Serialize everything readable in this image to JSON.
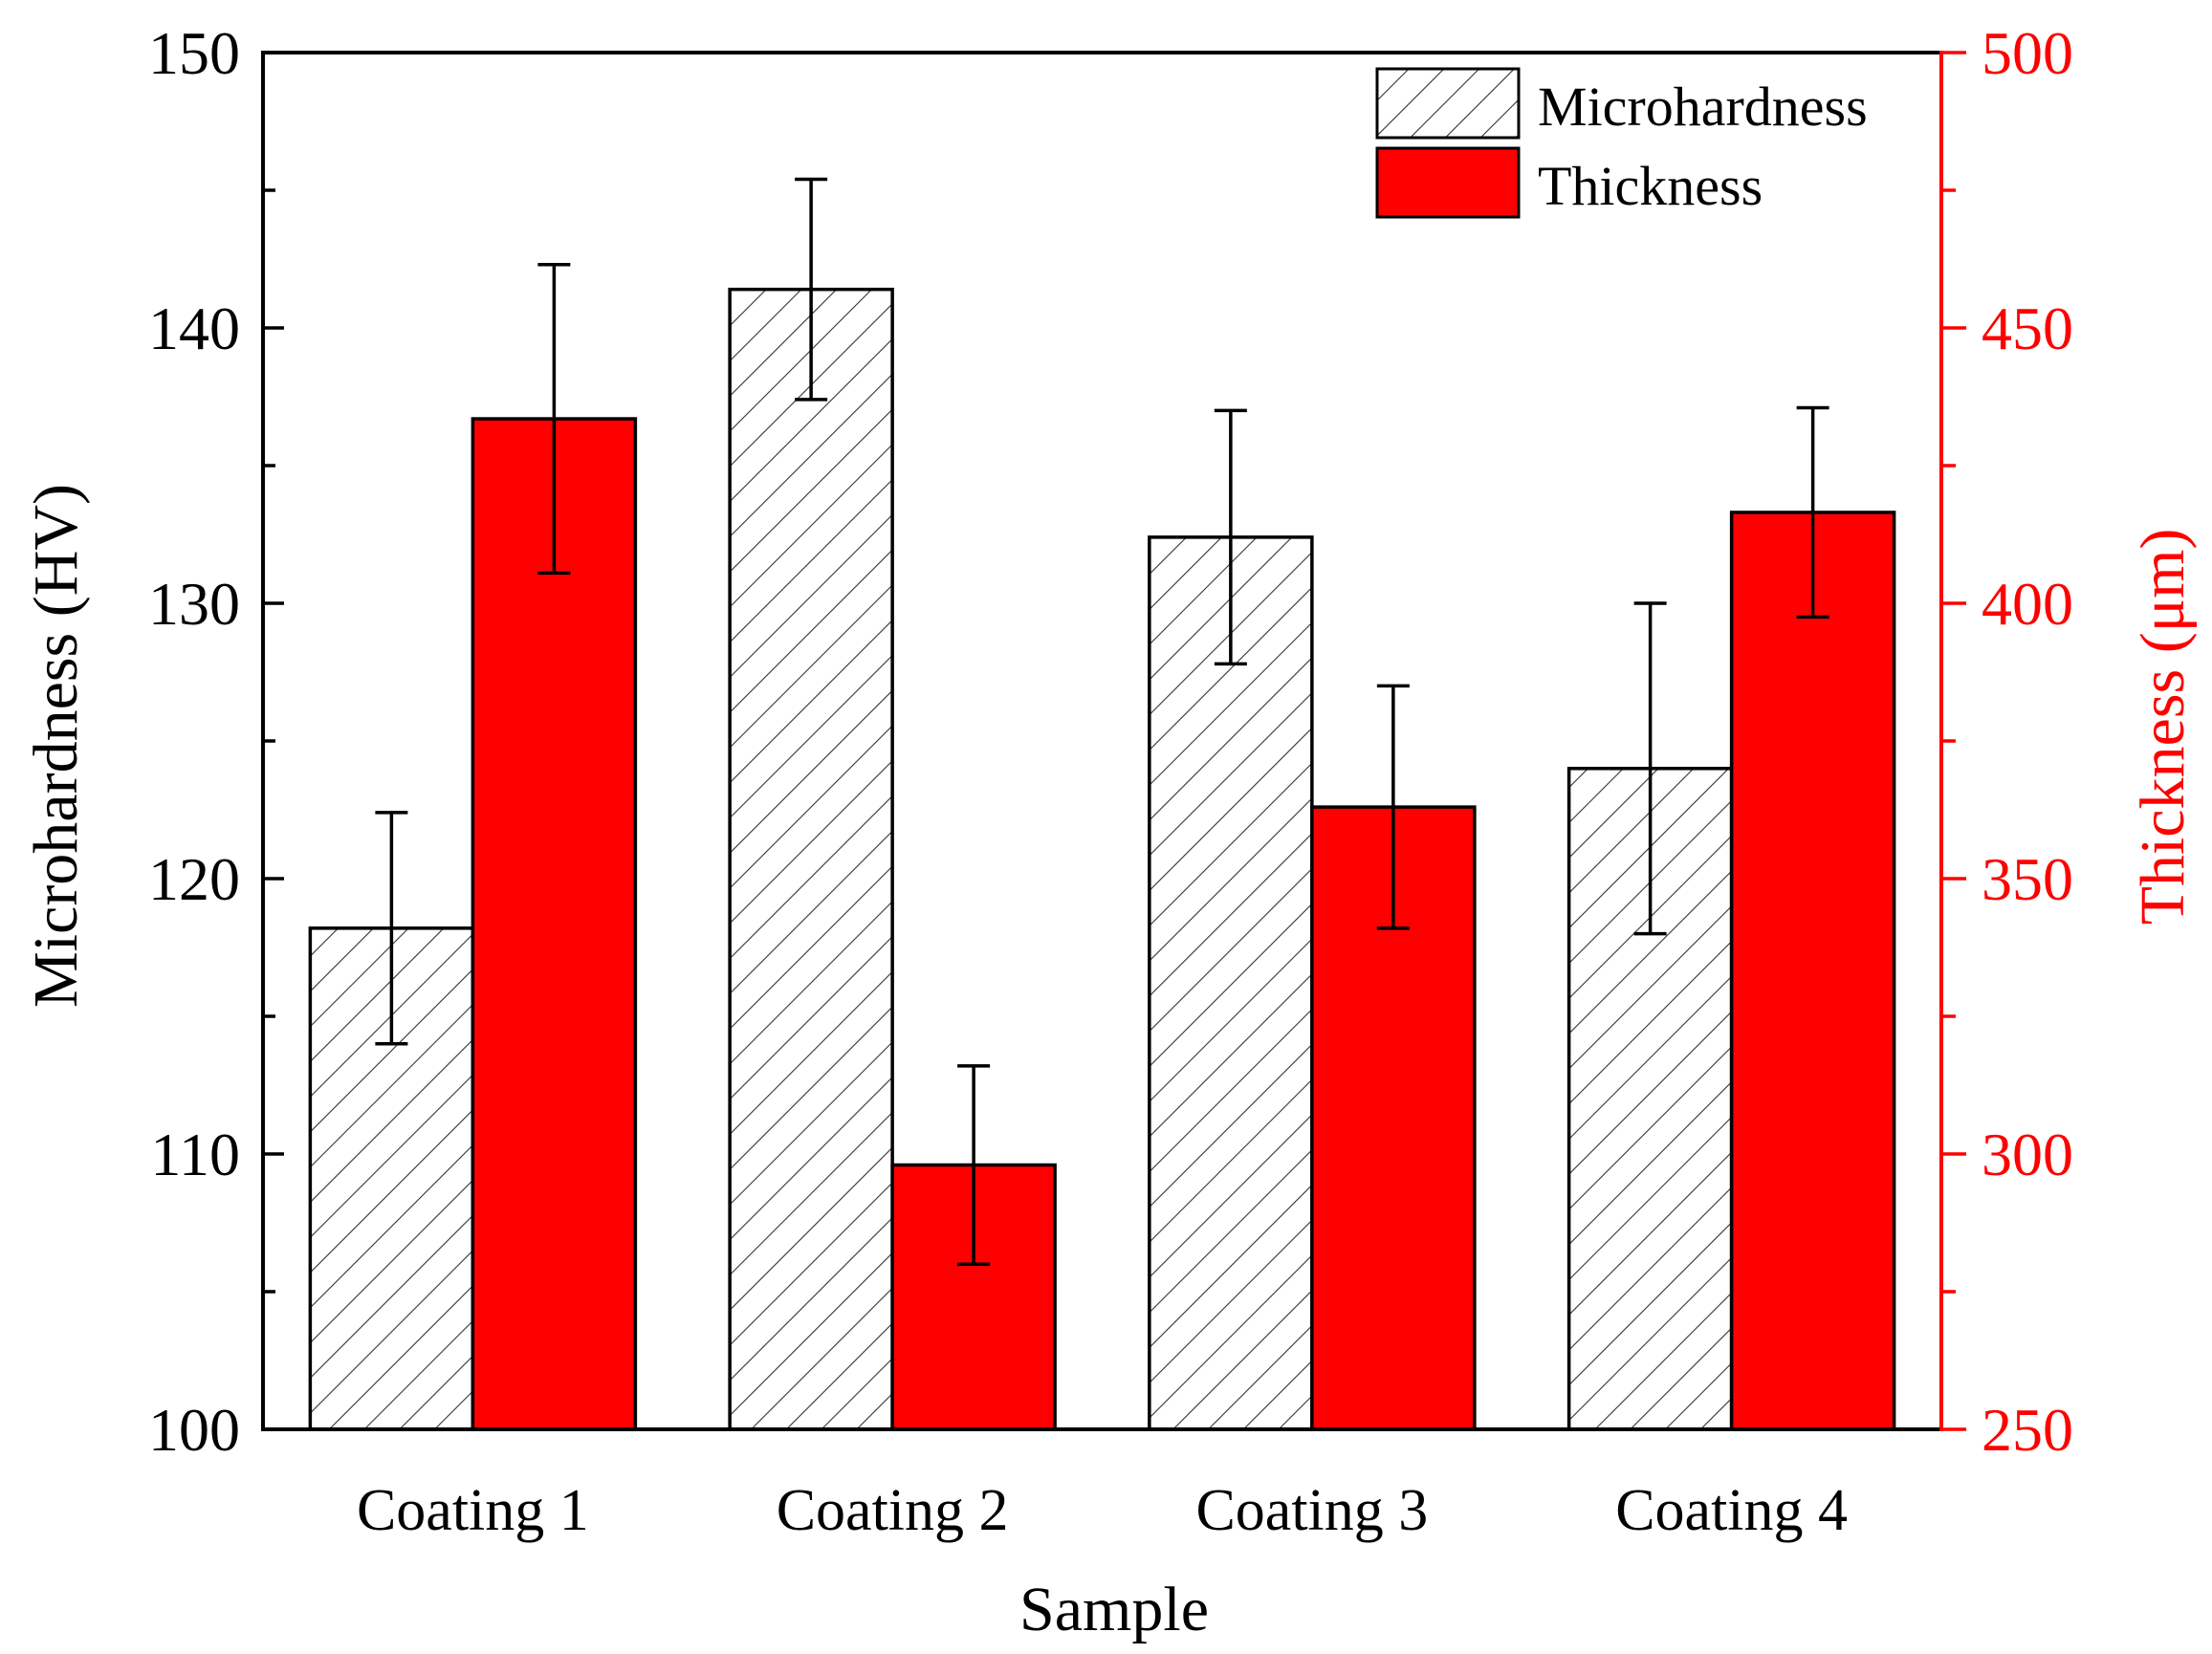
{
  "chart_data": {
    "type": "bar",
    "xlabel": "Sample",
    "ylabel_left": "Microhardness (HV)",
    "ylabel_right": "Thickness (μm)",
    "categories": [
      "Coating 1",
      "Coating 2",
      "Coating 3",
      "Coating 4"
    ],
    "ylim_left": [
      100,
      150
    ],
    "ylim_right": [
      250,
      500
    ],
    "left_ticks": [
      "100",
      "110",
      "120",
      "130",
      "140",
      "150"
    ],
    "right_ticks": [
      "250",
      "300",
      "350",
      "400",
      "450",
      "500"
    ],
    "series": [
      {
        "name": "Microhardness",
        "axis": "left",
        "style": "hatched",
        "values": [
          118.2,
          141.4,
          132.4,
          124.0
        ],
        "errors": [
          4.2,
          4.0,
          4.6,
          6.0
        ]
      },
      {
        "name": "Thickness",
        "axis": "right",
        "style": "solid",
        "values": [
          433.5,
          298.0,
          363.0,
          416.5
        ],
        "errors": [
          28.0,
          18.0,
          22.0,
          19.0
        ]
      }
    ],
    "legend": {
      "position": "top-right"
    },
    "grid": false
  },
  "colors": {
    "thickness": "#ff0000",
    "axis": "#000000",
    "right_axis": "#ff0000",
    "hatch_fill": "#ffffff"
  }
}
